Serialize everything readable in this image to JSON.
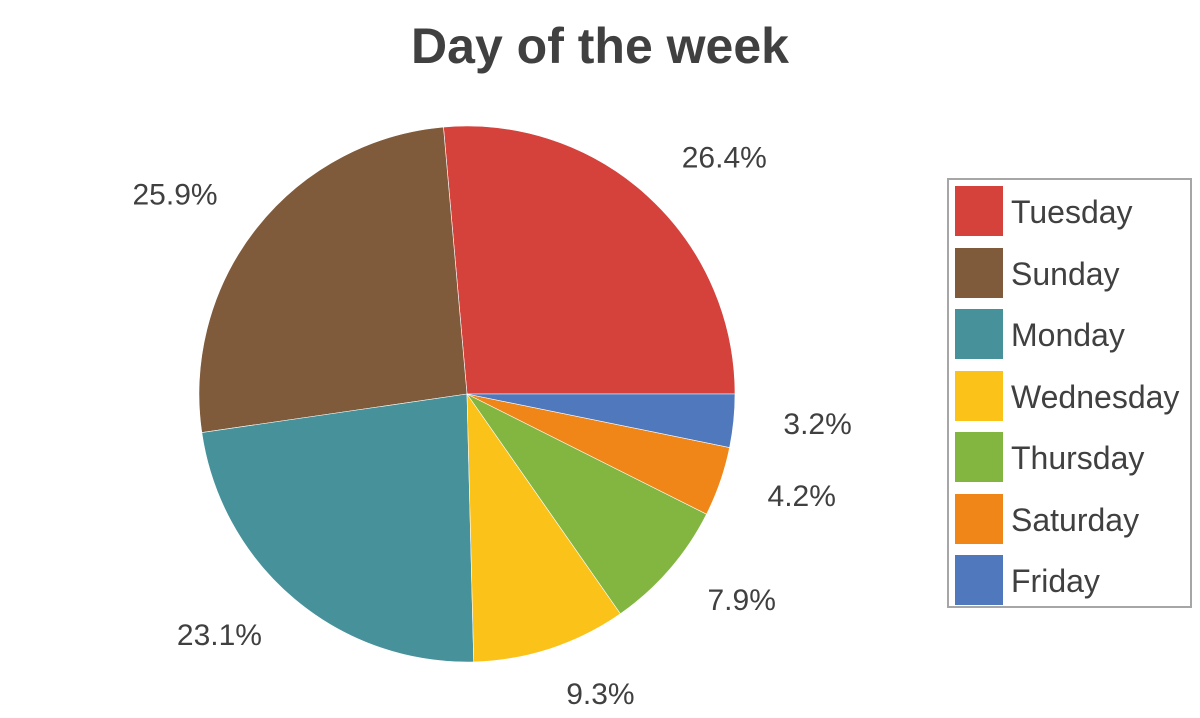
{
  "chart_data": {
    "type": "pie",
    "title": "Day of the week",
    "slices": [
      {
        "label": "Tuesday",
        "value": 26.4,
        "display": "26.4%",
        "color": "#d5423b"
      },
      {
        "label": "Sunday",
        "value": 25.9,
        "display": "25.9%",
        "color": "#7f5a3b"
      },
      {
        "label": "Monday",
        "value": 23.1,
        "display": "23.1%",
        "color": "#47929a"
      },
      {
        "label": "Wednesday",
        "value": 9.3,
        "display": "9.3%",
        "color": "#fbc21a"
      },
      {
        "label": "Thursday",
        "value": 7.9,
        "display": "7.9%",
        "color": "#82b641"
      },
      {
        "label": "Saturday",
        "value": 4.2,
        "display": "4.2%",
        "color": "#f08618"
      },
      {
        "label": "Friday",
        "value": 3.2,
        "display": "3.2%",
        "color": "#4f78bd"
      }
    ],
    "legend": {
      "position": "right",
      "items": [
        "Tuesday",
        "Sunday",
        "Monday",
        "Wednesday",
        "Thursday",
        "Saturday",
        "Friday"
      ]
    },
    "start": "3 o'clock",
    "direction": "counterclockwise"
  }
}
